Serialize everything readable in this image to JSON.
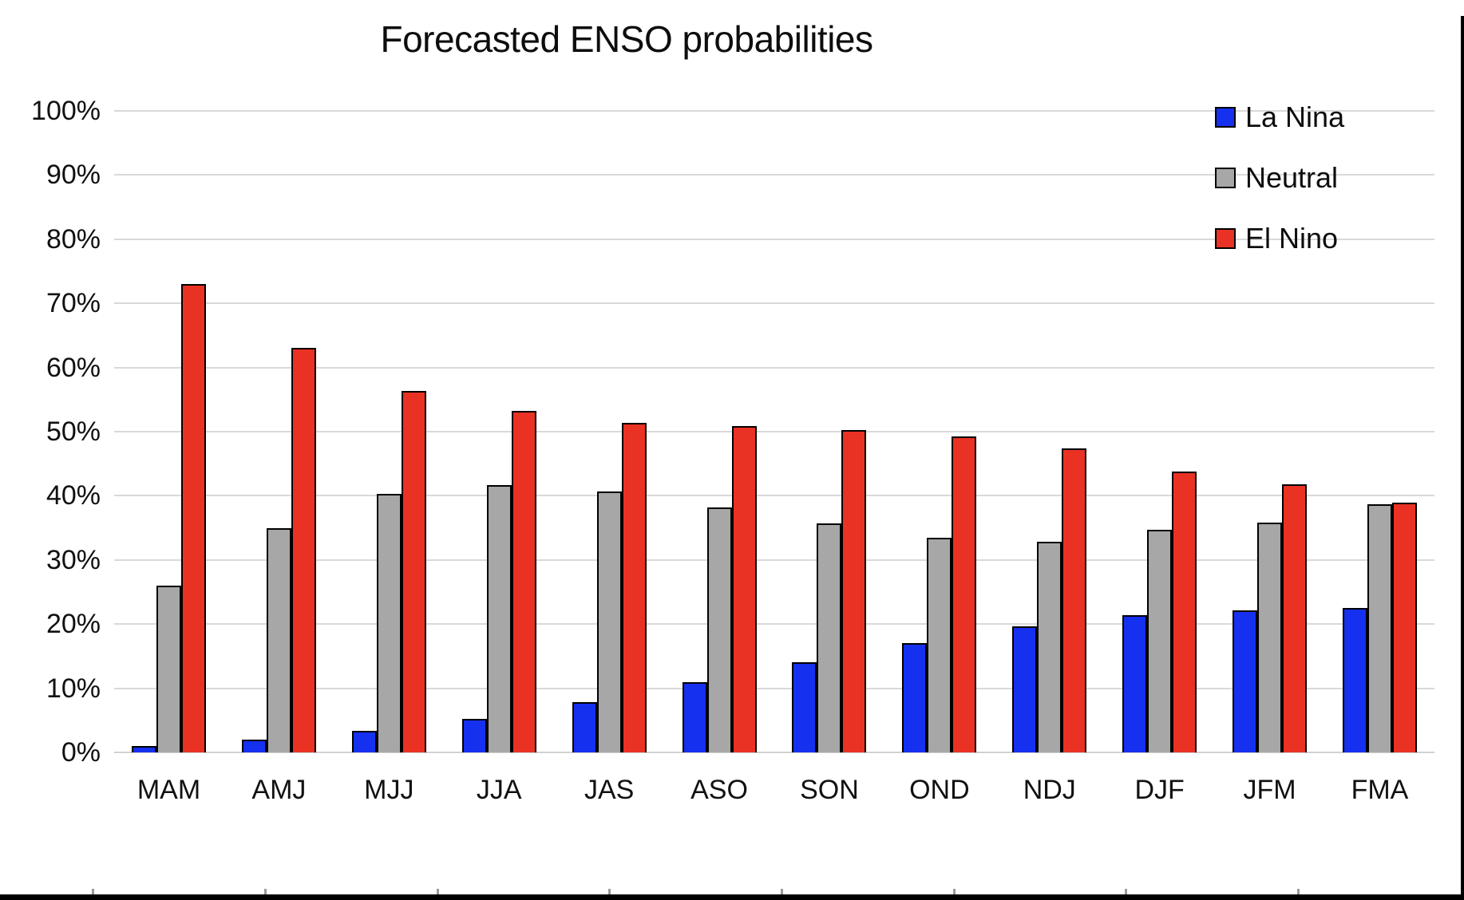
{
  "title": "Forecasted ENSO probabilities",
  "legend": {
    "position": "top-right",
    "items": [
      {
        "label": "La Nina",
        "color": "#1630f0"
      },
      {
        "label": "Neutral",
        "color": "#a7a7a7"
      },
      {
        "label": "El Nino",
        "color": "#e93223"
      }
    ]
  },
  "y_axis": {
    "tick_labels": [
      "100%",
      "90%",
      "80%",
      "70%",
      "60%",
      "50%",
      "40%",
      "30%",
      "20%",
      "10%",
      "0%"
    ]
  },
  "chart_data": {
    "type": "bar",
    "title": "Forecasted ENSO probabilities",
    "categories": [
      "MAM",
      "AMJ",
      "MJJ",
      "JJA",
      "JAS",
      "ASO",
      "SON",
      "OND",
      "NDJ",
      "DJF",
      "JFM",
      "FMA"
    ],
    "series": [
      {
        "name": "La Nina",
        "color": "#1630f0",
        "values": [
          1.0,
          2.0,
          3.3,
          5.2,
          7.8,
          11.0,
          14.1,
          17.1,
          19.6,
          21.4,
          22.2,
          22.5
        ]
      },
      {
        "name": "Neutral",
        "color": "#a7a7a7",
        "values": [
          26.0,
          35.0,
          40.3,
          41.7,
          40.7,
          38.2,
          35.7,
          33.5,
          32.8,
          34.7,
          35.8,
          38.7
        ]
      },
      {
        "name": "El Nino",
        "color": "#e93223",
        "values": [
          73.0,
          63.1,
          56.4,
          53.2,
          51.4,
          50.9,
          50.2,
          49.3,
          47.4,
          43.8,
          41.8,
          38.9
        ]
      }
    ],
    "xlabel": "",
    "ylabel": "",
    "ylim": [
      0,
      100
    ],
    "y_tick_step": 10,
    "grid": true,
    "gridline_color": "#d9d9d9",
    "legend_position": "top-right"
  },
  "frame": {
    "bottom_bar_color": "#000000",
    "right_border_color": "#000000",
    "ruler_tick_color": "#9a9a9a",
    "ruler_tick_x_positions": [
      115,
      331,
      547,
      762,
      978,
      1194,
      1409,
      1625
    ]
  }
}
